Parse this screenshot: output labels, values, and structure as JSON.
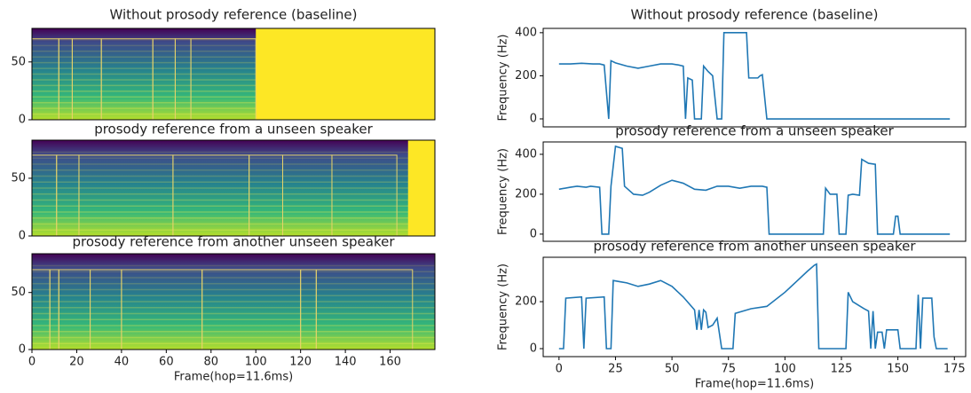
{
  "chart_data": [
    {
      "type": "spectrogram",
      "title": "Without prosody reference (baseline)",
      "xlim": [
        0,
        180
      ],
      "ylim": [
        0,
        79
      ],
      "yticks": [
        0,
        50
      ],
      "box_top": 70,
      "boundaries": [
        0,
        12,
        18,
        31,
        54,
        64,
        71,
        100
      ],
      "padding_start": 100
    },
    {
      "type": "spectrogram",
      "title": "prosody reference from a unseen speaker",
      "xlim": [
        0,
        180
      ],
      "ylim": [
        0,
        83
      ],
      "yticks": [
        0,
        50
      ],
      "box_top": 70,
      "boundaries": [
        0,
        11,
        21,
        63,
        97,
        112,
        134,
        163
      ],
      "padding_start": 168
    },
    {
      "type": "spectrogram",
      "title": "prosody reference from another unseen speaker",
      "xlim": [
        0,
        180
      ],
      "ylim": [
        0,
        84
      ],
      "yticks": [
        0,
        50
      ],
      "xticks": [
        0,
        20,
        40,
        60,
        80,
        100,
        120,
        140,
        160
      ],
      "xlabel": "Frame(hop=11.6ms)",
      "box_top": 70,
      "boundaries": [
        0,
        8,
        12,
        26,
        40,
        76,
        120,
        127,
        170
      ]
    },
    {
      "type": "line",
      "title": "Without prosody reference (baseline)",
      "ylabel": "Frequency (Hz)",
      "xlim": [
        -7,
        180
      ],
      "ylim": [
        -37,
        420
      ],
      "yticks": [
        0,
        200,
        400
      ],
      "x": [
        0,
        5,
        10,
        15,
        18,
        20,
        22,
        23,
        25,
        30,
        35,
        40,
        45,
        50,
        53,
        55,
        56,
        57,
        59,
        60,
        63,
        64,
        66,
        68,
        70,
        72,
        73,
        83,
        84,
        88,
        89,
        90,
        92,
        173
      ],
      "series": [
        {
          "color": "#1f77b4",
          "values": [
            255,
            255,
            258,
            255,
            255,
            250,
            0,
            270,
            260,
            245,
            235,
            245,
            255,
            255,
            250,
            245,
            0,
            190,
            180,
            0,
            0,
            245,
            220,
            200,
            0,
            0,
            400,
            400,
            190,
            190,
            200,
            205,
            0,
            0
          ]
        }
      ]
    },
    {
      "type": "line",
      "title": "prosody reference from a unseen speaker",
      "ylabel": "Frequency (Hz)",
      "xlim": [
        -7,
        180
      ],
      "ylim": [
        -36,
        462
      ],
      "yticks": [
        0,
        200,
        400
      ],
      "x": [
        0,
        5,
        8,
        12,
        14,
        18,
        19,
        22,
        23,
        25,
        28,
        29,
        33,
        37,
        40,
        45,
        50,
        55,
        60,
        65,
        70,
        75,
        80,
        85,
        90,
        92,
        93,
        117,
        118,
        120,
        123,
        124,
        127,
        128,
        130,
        133,
        134,
        137,
        140,
        141,
        148,
        149,
        150,
        151,
        173
      ],
      "series": [
        {
          "color": "#1f77b4",
          "values": [
            225,
            235,
            240,
            235,
            240,
            235,
            0,
            0,
            240,
            440,
            430,
            240,
            200,
            195,
            210,
            245,
            270,
            255,
            225,
            220,
            240,
            240,
            230,
            240,
            240,
            235,
            0,
            0,
            230,
            200,
            200,
            0,
            0,
            195,
            200,
            195,
            375,
            355,
            350,
            0,
            0,
            90,
            90,
            0,
            0
          ]
        }
      ]
    },
    {
      "type": "line",
      "title": "prosody reference from another unseen speaker",
      "ylabel": "Frequency (Hz)",
      "xlabel": "Frame(hop=11.6ms)",
      "xlim": [
        -7,
        180
      ],
      "ylim": [
        -34,
        389
      ],
      "yticks": [
        0,
        200
      ],
      "xticks": [
        0,
        25,
        50,
        75,
        100,
        125,
        150,
        175
      ],
      "x": [
        0,
        2,
        3,
        10,
        11,
        12,
        20,
        21,
        23,
        24,
        27,
        30,
        35,
        40,
        45,
        50,
        55,
        60,
        61,
        62,
        63,
        64,
        65,
        66,
        68,
        70,
        72,
        77,
        78,
        85,
        92,
        100,
        105,
        110,
        113,
        114,
        115,
        127,
        128,
        130,
        135,
        137,
        138,
        139,
        140,
        141,
        143,
        144,
        145,
        150,
        151,
        158,
        159,
        160,
        161,
        165,
        166,
        167,
        172
      ],
      "series": [
        {
          "color": "#1f77b4",
          "values": [
            0,
            0,
            215,
            220,
            0,
            215,
            220,
            0,
            0,
            290,
            285,
            280,
            265,
            275,
            290,
            265,
            220,
            165,
            80,
            165,
            80,
            165,
            155,
            90,
            100,
            130,
            0,
            0,
            150,
            170,
            180,
            240,
            285,
            330,
            355,
            360,
            0,
            0,
            240,
            200,
            170,
            160,
            0,
            160,
            0,
            70,
            70,
            0,
            80,
            80,
            0,
            0,
            230,
            0,
            215,
            215,
            50,
            0,
            0
          ]
        }
      ]
    }
  ]
}
